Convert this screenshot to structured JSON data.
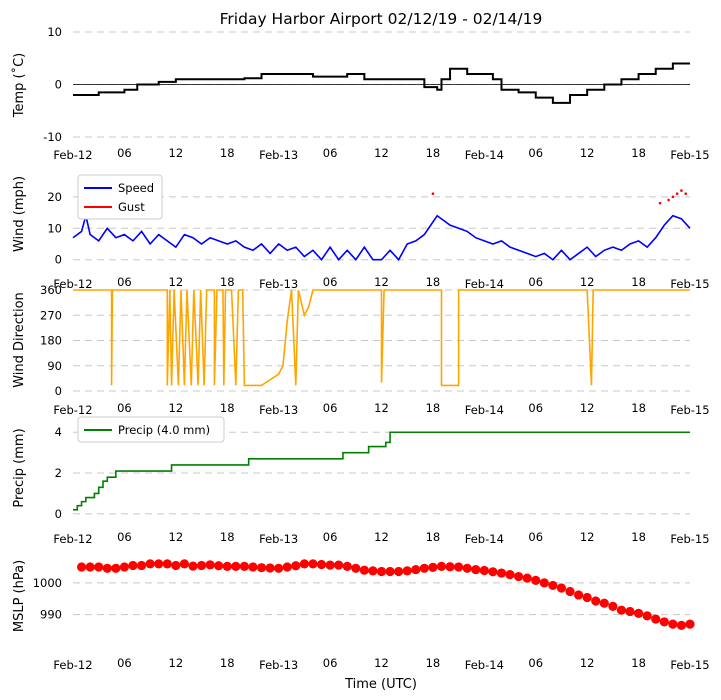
{
  "title": "Friday Harbor Airport 02/12/19 - 02/14/19",
  "xlabel": "Time (UTC)",
  "x_ticks": [
    {
      "hour": 0,
      "label": "Feb-12"
    },
    {
      "hour": 6,
      "label": "06"
    },
    {
      "hour": 12,
      "label": "12"
    },
    {
      "hour": 18,
      "label": "18"
    },
    {
      "hour": 24,
      "label": "Feb-13"
    },
    {
      "hour": 30,
      "label": "06"
    },
    {
      "hour": 36,
      "label": "12"
    },
    {
      "hour": 42,
      "label": "18"
    },
    {
      "hour": 48,
      "label": "Feb-14"
    },
    {
      "hour": 54,
      "label": "06"
    },
    {
      "hour": 60,
      "label": "12"
    },
    {
      "hour": 66,
      "label": "18"
    },
    {
      "hour": 72,
      "label": "Feb-15"
    }
  ],
  "colors": {
    "temp": "#000000",
    "speed": "#0000ff",
    "gust": "#ff0000",
    "dir": "#ffa500",
    "precip": "#008000",
    "mslp": "#ff0000",
    "grid": "#c8c8c8"
  },
  "chart_data": [
    {
      "type": "line",
      "id": "temp",
      "ylabel": "Temp ($^\\circ$C)",
      "ylabel_text": "Temp (˚C)",
      "ylim": [
        -10,
        10
      ],
      "yticks": [
        -10,
        0,
        10
      ],
      "zero_line": true,
      "series": [
        {
          "name": "Temp",
          "points": [
            [
              0,
              -2.0
            ],
            [
              3,
              -1.5
            ],
            [
              6,
              -1.0
            ],
            [
              7.5,
              0.0
            ],
            [
              10,
              0.5
            ],
            [
              12,
              1.0
            ],
            [
              16,
              1.0
            ],
            [
              20,
              1.2
            ],
            [
              22,
              2.0
            ],
            [
              26,
              2.0
            ],
            [
              28,
              1.5
            ],
            [
              31,
              1.5
            ],
            [
              32,
              2.0
            ],
            [
              34,
              1.0
            ],
            [
              38,
              1.0
            ],
            [
              40,
              1.0
            ],
            [
              41,
              -0.5
            ],
            [
              42.5,
              -1.0
            ],
            [
              43,
              1.0
            ],
            [
              44,
              3.0
            ],
            [
              46,
              2.0
            ],
            [
              48,
              2.0
            ],
            [
              49,
              1.0
            ],
            [
              50,
              -1.0
            ],
            [
              52,
              -1.5
            ],
            [
              54,
              -2.5
            ],
            [
              56,
              -3.5
            ],
            [
              58,
              -2.0
            ],
            [
              60,
              -1.0
            ],
            [
              62,
              0.0
            ],
            [
              64,
              1.0
            ],
            [
              66,
              2.0
            ],
            [
              68,
              3.0
            ],
            [
              70,
              4.0
            ],
            [
              72,
              4.0
            ]
          ]
        }
      ]
    },
    {
      "type": "line",
      "id": "wind",
      "ylabel": "Wind (mph)",
      "ylim": [
        -2,
        26
      ],
      "yticks": [
        0,
        10,
        20
      ],
      "legend": [
        "Speed",
        "Gust"
      ],
      "series": [
        {
          "name": "Speed",
          "points": [
            [
              0,
              7
            ],
            [
              1,
              9
            ],
            [
              1.5,
              14
            ],
            [
              2,
              8
            ],
            [
              3,
              6
            ],
            [
              4,
              10
            ],
            [
              5,
              7
            ],
            [
              6,
              8
            ],
            [
              7,
              6
            ],
            [
              8,
              9
            ],
            [
              9,
              5
            ],
            [
              10,
              8
            ],
            [
              11,
              6
            ],
            [
              12,
              4
            ],
            [
              13,
              8
            ],
            [
              14,
              7
            ],
            [
              15,
              5
            ],
            [
              16,
              7
            ],
            [
              17,
              6
            ],
            [
              18,
              5
            ],
            [
              19,
              6
            ],
            [
              20,
              4
            ],
            [
              21,
              3
            ],
            [
              22,
              5
            ],
            [
              23,
              2
            ],
            [
              24,
              5
            ],
            [
              25,
              3
            ],
            [
              26,
              4
            ],
            [
              27,
              1
            ],
            [
              28,
              3
            ],
            [
              29,
              0
            ],
            [
              30,
              4
            ],
            [
              31,
              0
            ],
            [
              32,
              3
            ],
            [
              33,
              0
            ],
            [
              34,
              4
            ],
            [
              35,
              0
            ],
            [
              36,
              0
            ],
            [
              37,
              3
            ],
            [
              38,
              0
            ],
            [
              39,
              5
            ],
            [
              40,
              6
            ],
            [
              41,
              8
            ],
            [
              42,
              12
            ],
            [
              42.5,
              14
            ],
            [
              43,
              13
            ],
            [
              44,
              11
            ],
            [
              45,
              10
            ],
            [
              46,
              9
            ],
            [
              47,
              7
            ],
            [
              48,
              6
            ],
            [
              49,
              5
            ],
            [
              50,
              6
            ],
            [
              51,
              4
            ],
            [
              52,
              3
            ],
            [
              53,
              2
            ],
            [
              54,
              1
            ],
            [
              55,
              2
            ],
            [
              56,
              0
            ],
            [
              57,
              3
            ],
            [
              58,
              0
            ],
            [
              59,
              2
            ],
            [
              60,
              4
            ],
            [
              61,
              1
            ],
            [
              62,
              3
            ],
            [
              63,
              4
            ],
            [
              64,
              3
            ],
            [
              65,
              5
            ],
            [
              66,
              6
            ],
            [
              67,
              4
            ],
            [
              68,
              7
            ],
            [
              69,
              11
            ],
            [
              70,
              14
            ],
            [
              71,
              13
            ],
            [
              72,
              10
            ]
          ]
        },
        {
          "name": "Gust",
          "points": [
            [
              42,
              21
            ],
            [
              68.5,
              18
            ],
            [
              69.5,
              19
            ],
            [
              70,
              20
            ],
            [
              70.5,
              21
            ],
            [
              71,
              22
            ],
            [
              71.5,
              21
            ]
          ]
        }
      ]
    },
    {
      "type": "line",
      "id": "wdir",
      "ylabel": "Wind Direction",
      "ylim": [
        0,
        360
      ],
      "yticks": [
        0,
        90,
        180,
        270,
        360
      ],
      "series": [
        {
          "name": "Direction",
          "points": [
            [
              0,
              360
            ],
            [
              4.5,
              360
            ],
            [
              4.5,
              20
            ],
            [
              4.6,
              360
            ],
            [
              11,
              360
            ],
            [
              11,
              20
            ],
            [
              11.3,
              360
            ],
            [
              11.5,
              20
            ],
            [
              11.8,
              360
            ],
            [
              12.3,
              20
            ],
            [
              12.6,
              360
            ],
            [
              13,
              20
            ],
            [
              13.3,
              360
            ],
            [
              13.8,
              20
            ],
            [
              14.1,
              360
            ],
            [
              14.6,
              20
            ],
            [
              14.9,
              360
            ],
            [
              15.3,
              20
            ],
            [
              15.6,
              360
            ],
            [
              16.5,
              360
            ],
            [
              16.5,
              20
            ],
            [
              16.8,
              360
            ],
            [
              17.5,
              360
            ],
            [
              17.6,
              20
            ],
            [
              17.8,
              360
            ],
            [
              18.5,
              360
            ],
            [
              19,
              20
            ],
            [
              19.3,
              360
            ],
            [
              19.8,
              360
            ],
            [
              20,
              20
            ],
            [
              22,
              20
            ],
            [
              23,
              40
            ],
            [
              24,
              60
            ],
            [
              24.5,
              90
            ],
            [
              25,
              250
            ],
            [
              25.5,
              360
            ],
            [
              26,
              20
            ],
            [
              26.3,
              360
            ],
            [
              27,
              270
            ],
            [
              27.5,
              300
            ],
            [
              28,
              360
            ],
            [
              36,
              360
            ],
            [
              36,
              30
            ],
            [
              36.3,
              360
            ],
            [
              43,
              360
            ],
            [
              43,
              20
            ],
            [
              45,
              20
            ],
            [
              45,
              360
            ],
            [
              60,
              360
            ],
            [
              60.5,
              20
            ],
            [
              60.7,
              360
            ],
            [
              72,
              360
            ]
          ]
        }
      ]
    },
    {
      "type": "line",
      "id": "precip",
      "ylabel": "Precip (mm)",
      "ylim": [
        -0.3,
        4.6
      ],
      "yticks": [
        0,
        2,
        4
      ],
      "legend": [
        "Precip (4.0 mm)"
      ],
      "series": [
        {
          "name": "Precip",
          "points": [
            [
              0,
              0.2
            ],
            [
              0.5,
              0.4
            ],
            [
              1,
              0.6
            ],
            [
              1.5,
              0.8
            ],
            [
              2.5,
              1.0
            ],
            [
              3,
              1.3
            ],
            [
              3.5,
              1.6
            ],
            [
              4,
              1.8
            ],
            [
              5,
              2.1
            ],
            [
              11,
              2.1
            ],
            [
              11.5,
              2.4
            ],
            [
              20,
              2.4
            ],
            [
              20.5,
              2.7
            ],
            [
              28,
              2.7
            ],
            [
              31,
              2.7
            ],
            [
              31.5,
              3.0
            ],
            [
              34,
              3.0
            ],
            [
              34.5,
              3.3
            ],
            [
              36,
              3.3
            ],
            [
              36.5,
              3.5
            ],
            [
              37,
              4.0
            ],
            [
              72,
              4.0
            ]
          ]
        }
      ]
    },
    {
      "type": "scatter",
      "id": "mslp",
      "ylabel": "MSLP (hPa)",
      "ylim": [
        982,
        1011
      ],
      "yticks": [
        990,
        1000
      ],
      "series": [
        {
          "name": "MSLP",
          "points": [
            [
              1,
              1005
            ],
            [
              2,
              1005
            ],
            [
              3,
              1005
            ],
            [
              4,
              1004.6
            ],
            [
              5,
              1004.6
            ],
            [
              6,
              1005
            ],
            [
              7,
              1005.5
            ],
            [
              8,
              1005.5
            ],
            [
              9,
              1006
            ],
            [
              10,
              1006
            ],
            [
              11,
              1006
            ],
            [
              12,
              1005.5
            ],
            [
              13,
              1006
            ],
            [
              14,
              1005.3
            ],
            [
              15,
              1005.5
            ],
            [
              16,
              1005.7
            ],
            [
              17,
              1005.4
            ],
            [
              18,
              1005.2
            ],
            [
              19,
              1005.2
            ],
            [
              20,
              1005.2
            ],
            [
              21,
              1005
            ],
            [
              22,
              1004.8
            ],
            [
              23,
              1004.7
            ],
            [
              24,
              1004.6
            ],
            [
              25,
              1005
            ],
            [
              26,
              1005.4
            ],
            [
              27,
              1006
            ],
            [
              28,
              1006
            ],
            [
              29,
              1005.8
            ],
            [
              30,
              1005.6
            ],
            [
              31,
              1005.6
            ],
            [
              32,
              1005.2
            ],
            [
              33,
              1004.6
            ],
            [
              34,
              1004
            ],
            [
              35,
              1003.8
            ],
            [
              36,
              1003.6
            ],
            [
              37,
              1003.6
            ],
            [
              38,
              1003.6
            ],
            [
              39,
              1003.8
            ],
            [
              40,
              1004.2
            ],
            [
              41,
              1004.6
            ],
            [
              42,
              1004.9
            ],
            [
              43,
              1005.2
            ],
            [
              44,
              1005.1
            ],
            [
              45,
              1005
            ],
            [
              46,
              1004.6
            ],
            [
              47,
              1004.2
            ],
            [
              48,
              1003.9
            ],
            [
              49,
              1003.5
            ],
            [
              50,
              1003.1
            ],
            [
              51,
              1002.6
            ],
            [
              52,
              1002
            ],
            [
              53,
              1001.5
            ],
            [
              54,
              1000.8
            ],
            [
              55,
              1000
            ],
            [
              56,
              999.2
            ],
            [
              57,
              998.4
            ],
            [
              58,
              997.3
            ],
            [
              59,
              996.2
            ],
            [
              60,
              995.4
            ],
            [
              61,
              994.3
            ],
            [
              62,
              993.6
            ],
            [
              63,
              992.6
            ],
            [
              64,
              991.4
            ],
            [
              65,
              991
            ],
            [
              66,
              990.4
            ],
            [
              67,
              989.6
            ],
            [
              68,
              988.6
            ],
            [
              69,
              987.7
            ],
            [
              70,
              987
            ],
            [
              71,
              986.6
            ],
            [
              72,
              987
            ]
          ]
        }
      ]
    }
  ]
}
